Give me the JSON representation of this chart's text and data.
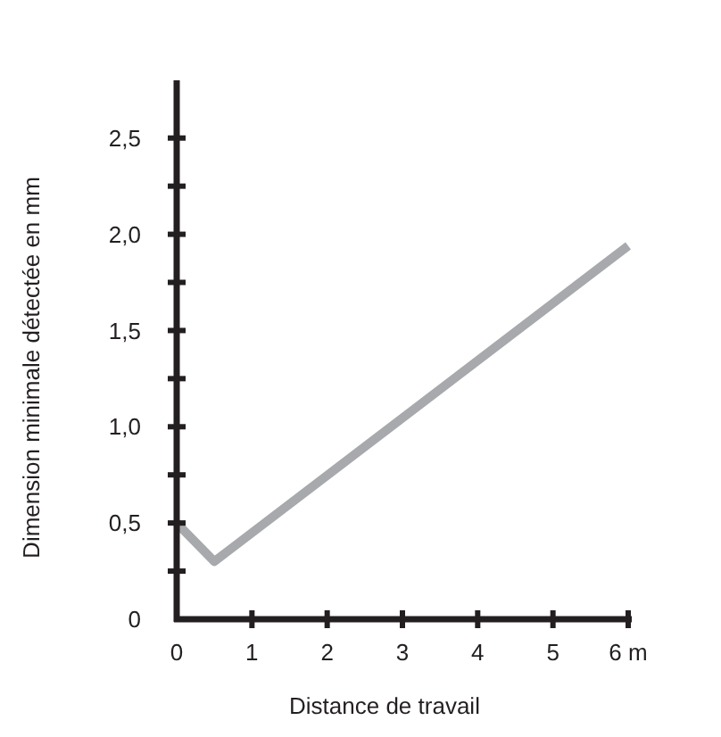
{
  "chart_data": {
    "type": "line",
    "xlabel": "Distance de travail",
    "ylabel": "Dimension minimale détectée en mm",
    "x": [
      0,
      0.5,
      6
    ],
    "series": [
      {
        "color": "#a7a9ac",
        "values": [
          0.5,
          0.3,
          1.94
        ]
      }
    ],
    "xlim": [
      0,
      6
    ],
    "ylim": [
      0,
      2.8
    ],
    "xticks": [
      0,
      1,
      2,
      3,
      4,
      5,
      {
        "value": 6,
        "label": "6 m"
      }
    ],
    "yticks": [
      0,
      {
        "value": 0.25,
        "label": null
      },
      {
        "value": 0.5,
        "label": "0,5"
      },
      {
        "value": 0.75,
        "label": null
      },
      {
        "value": 1,
        "label": "1,0"
      },
      {
        "value": 1.25,
        "label": null
      },
      {
        "value": 1.5,
        "label": "1,5"
      },
      {
        "value": 1.75,
        "label": null
      },
      {
        "value": 2,
        "label": "2,0"
      },
      {
        "value": 2.25,
        "label": null
      },
      {
        "value": 2.5,
        "label": "2,5"
      }
    ],
    "grid": false,
    "marker": "none",
    "line_style": "solid"
  }
}
